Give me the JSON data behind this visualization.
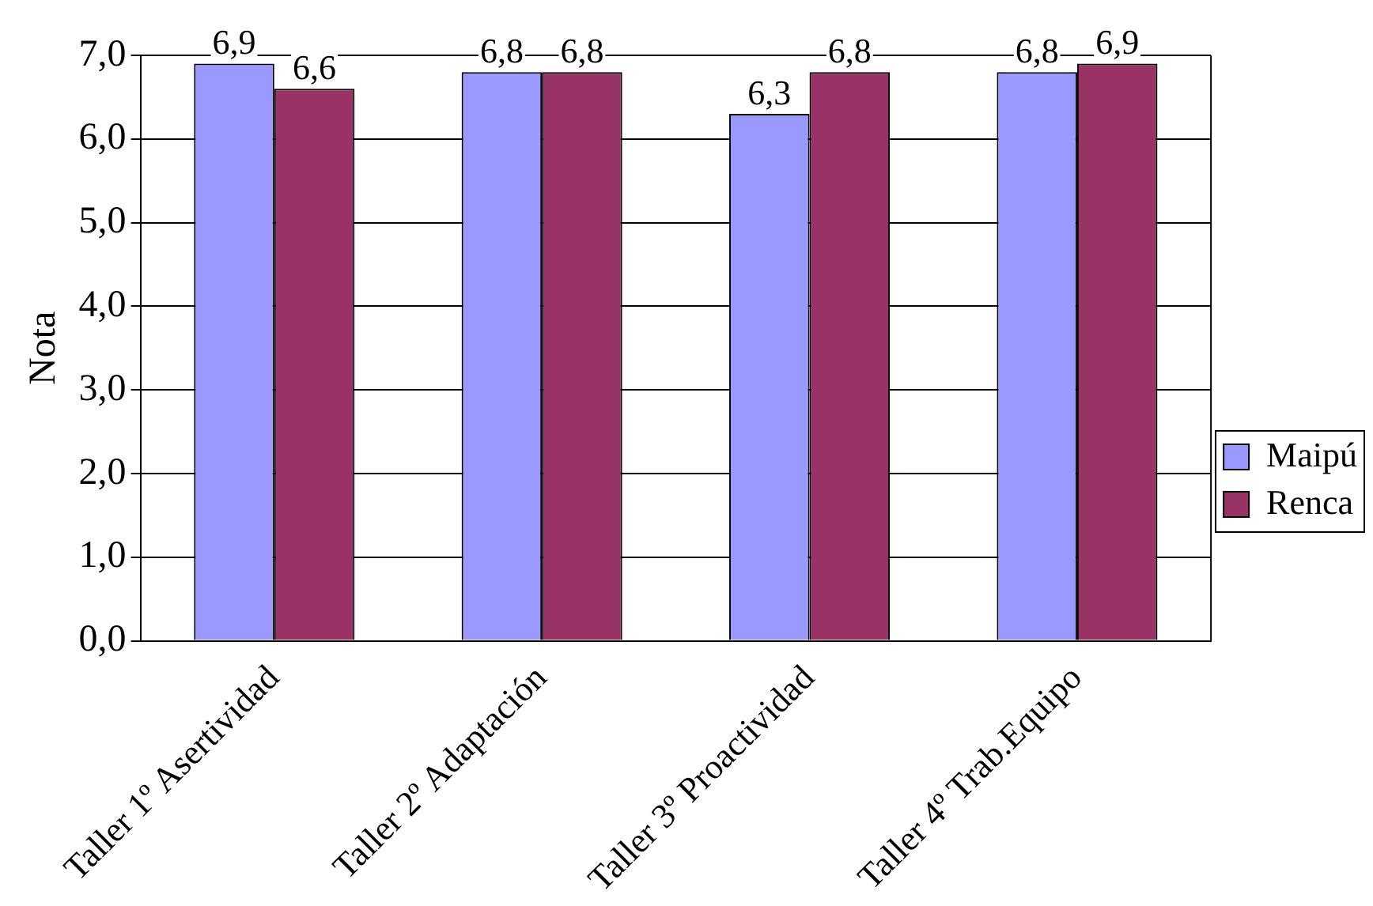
{
  "chart_data": {
    "type": "bar",
    "ylabel": "Nota",
    "categories": [
      "Taller 1º Asertividad",
      "Taller 2º Adaptación",
      "Taller 3º Proactividad",
      "Taller 4º Trab.Equipo"
    ],
    "series": [
      {
        "name": "Maipú",
        "color": "#9999ff",
        "values": [
          6.9,
          6.8,
          6.3,
          6.8
        ],
        "value_labels": [
          "6,9",
          "6,8",
          "6,3",
          "6,8"
        ]
      },
      {
        "name": "Renca",
        "color": "#993366",
        "values": [
          6.6,
          6.8,
          6.8,
          6.9
        ],
        "value_labels": [
          "6,6",
          "6,8",
          "6,8",
          "6,9"
        ]
      }
    ],
    "ylim": [
      0,
      7
    ],
    "yticks": [
      {
        "value": 0,
        "label": "0,0"
      },
      {
        "value": 1,
        "label": "1,0"
      },
      {
        "value": 2,
        "label": "2,0"
      },
      {
        "value": 3,
        "label": "3,0"
      },
      {
        "value": 4,
        "label": "4,0"
      },
      {
        "value": 5,
        "label": "5,0"
      },
      {
        "value": 6,
        "label": "6,0"
      },
      {
        "value": 7,
        "label": "7,0"
      }
    ],
    "grid": "y",
    "legend": "right"
  }
}
